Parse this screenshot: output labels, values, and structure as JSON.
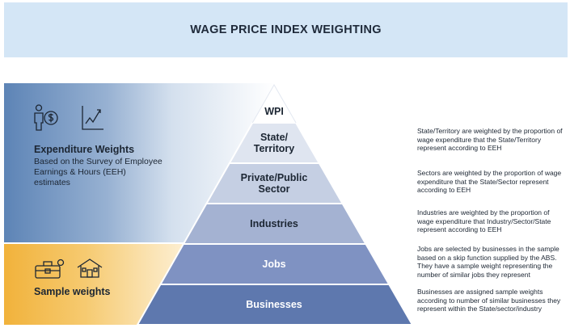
{
  "title": "WAGE PRICE INDEX WEIGHTING",
  "expenditure": {
    "heading": "Expenditure Weights",
    "description": "Based on the Survey of Employee Earnings & Hours (EEH) estimates",
    "icons": [
      "person-dollar-icon",
      "line-chart-icon"
    ]
  },
  "sample": {
    "heading": "Sample weights",
    "icons": [
      "business-building-icon",
      "house-icon"
    ]
  },
  "pyramid": {
    "tiers": [
      {
        "label": "WPI",
        "color": "#ffffff"
      },
      {
        "label": "State/ Territory",
        "color": "#dfe5f0"
      },
      {
        "label": "Private/Public Sector",
        "color": "#c5cfe3"
      },
      {
        "label": "Industries",
        "color": "#a4b2d2"
      },
      {
        "label": "Jobs",
        "color": "#7f92c2"
      },
      {
        "label": "Businesses",
        "color": "#5e78ae"
      }
    ]
  },
  "descriptions": [
    "State/Territory are weighted by the proportion of wage expenditure that the State/Territory represent according to EEH",
    "Sectors are weighted by the proportion of wage expenditure that the State/Sector represent according to EEH",
    "Industries are weighted by the proportion of wage expenditure that Industry/Sector/State represent according to EEH",
    "Jobs are selected by businesses in the sample based on a skip function supplied by the ABS. They have a sample weight representing the number of similar jobs they represent",
    "Businesses are assigned sample weights according to number of similar businesses they represent within the State/sector/industry"
  ]
}
